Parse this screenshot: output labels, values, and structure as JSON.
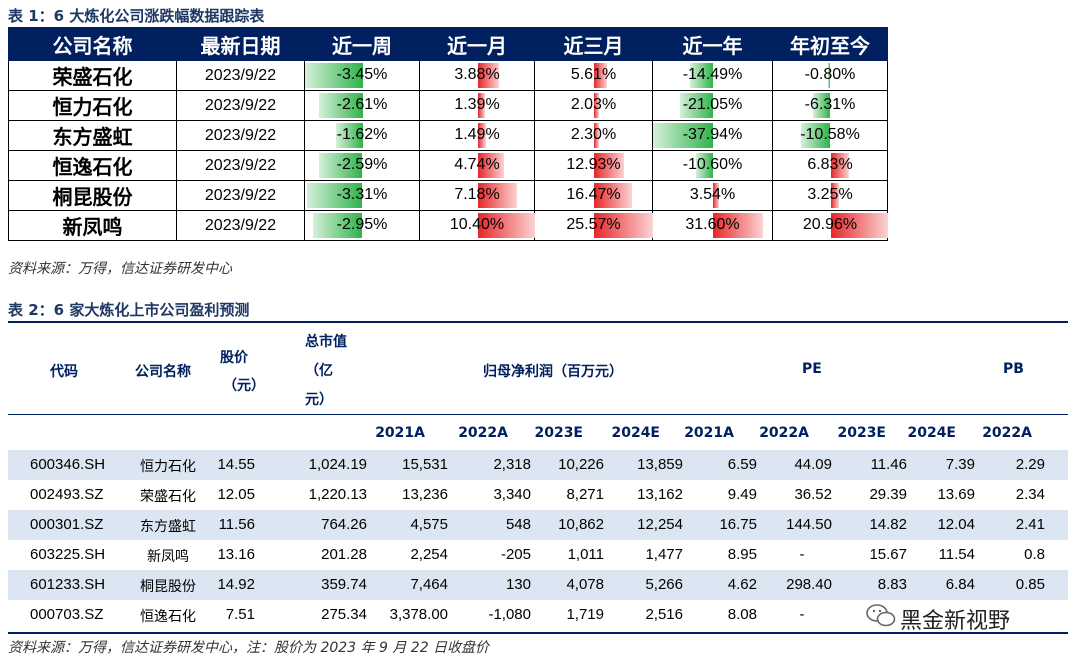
{
  "table1": {
    "caption": "表 1：6 大炼化公司涨跌幅数据跟踪表",
    "headers": [
      "公司名称",
      "最新日期",
      "近一周",
      "近一月",
      "近三月",
      "近一年",
      "年初至今"
    ],
    "rows": [
      {
        "name": "荣盛石化",
        "date": "2023/9/22",
        "values": [
          "-3.45%",
          "3.88%",
          "5.61%",
          "-14.49%",
          "-0.80%"
        ],
        "nums": [
          -3.45,
          3.88,
          5.61,
          -14.49,
          -0.8
        ]
      },
      {
        "name": "恒力石化",
        "date": "2023/9/22",
        "values": [
          "-2.61%",
          "1.39%",
          "2.03%",
          "-21.05%",
          "-6.31%"
        ],
        "nums": [
          -2.61,
          1.39,
          2.03,
          -21.05,
          -6.31
        ]
      },
      {
        "name": "东方盛虹",
        "date": "2023/9/22",
        "values": [
          "-1.62%",
          "1.49%",
          "2.30%",
          "-37.94%",
          "-10.58%"
        ],
        "nums": [
          -1.62,
          1.49,
          2.3,
          -37.94,
          -10.58
        ]
      },
      {
        "name": "恒逸石化",
        "date": "2023/9/22",
        "values": [
          "-2.59%",
          "4.74%",
          "12.93%",
          "-10.60%",
          "6.83%"
        ],
        "nums": [
          -2.59,
          4.74,
          12.93,
          -10.6,
          6.83
        ]
      },
      {
        "name": "桐昆股份",
        "date": "2023/9/22",
        "values": [
          "-3.31%",
          "7.18%",
          "16.47%",
          "3.54%",
          "3.25%"
        ],
        "nums": [
          -3.31,
          7.18,
          16.47,
          3.54,
          3.25
        ]
      },
      {
        "name": "新凤鸣",
        "date": "2023/9/22",
        "values": [
          "-2.95%",
          "10.40%",
          "25.57%",
          "31.60%",
          "20.96%"
        ],
        "nums": [
          -2.95,
          10.4,
          25.57,
          31.6,
          20.96
        ]
      }
    ],
    "source": "资料来源：万得，信达证券研发中心"
  },
  "table2": {
    "caption": "表 2：6 家大炼化上市公司盈利预测",
    "header": {
      "code": "代码",
      "name": "公司名称",
      "price_line1": "股价",
      "price_line2": "（元）",
      "cap_line1": "总市值",
      "cap_line2": "（亿",
      "cap_line3": "元）",
      "profit": "归母净利润（百万元）",
      "pe": "PE",
      "pb": "PB"
    },
    "years": [
      "2021A",
      "2022A",
      "2023E",
      "2024E",
      "2021A",
      "2022A",
      "2023E",
      "2024E",
      "2022A"
    ],
    "rows": [
      [
        "600346.SH",
        "恒力石化",
        "14.55",
        "1,024.19",
        "15,531",
        "2,318",
        "10,226",
        "13,859",
        "6.59",
        "44.09",
        "11.46",
        "7.39",
        "2.29"
      ],
      [
        "002493.SZ",
        "荣盛石化",
        "12.05",
        "1,220.13",
        "13,236",
        "3,340",
        "8,271",
        "13,162",
        "9.49",
        "36.52",
        "29.39",
        "13.69",
        "2.34"
      ],
      [
        "000301.SZ",
        "东方盛虹",
        "11.56",
        "764.26",
        "4,575",
        "548",
        "10,862",
        "12,254",
        "16.75",
        "144.50",
        "14.82",
        "12.04",
        "2.41"
      ],
      [
        "603225.SH",
        "新凤鸣",
        "13.16",
        "201.28",
        "2,254",
        "-205",
        "1,011",
        "1,477",
        "8.95",
        "-",
        "15.67",
        "11.54",
        "0.8"
      ],
      [
        "601233.SH",
        "桐昆股份",
        "14.92",
        "359.74",
        "7,464",
        "130",
        "4,078",
        "5,266",
        "4.62",
        "298.40",
        "8.83",
        "6.84",
        "0.85"
      ],
      [
        "000703.SZ",
        "恒逸石化",
        "7.51",
        "275.34",
        "3,378.00",
        "-1,080",
        "1,719",
        "2,516",
        "8.08",
        "-",
        "",
        "",
        ""
      ]
    ],
    "source": "资料来源：万得，信达证券研发中心，注：股价为 2023 年 9 月 22 日收盘价"
  },
  "watermark": "黑金新视野",
  "colors": {
    "header_bg": "#002060",
    "neg_bar": "#2fb34a",
    "pos_bar": "#e8262a",
    "alt_row": "#dce6f2"
  }
}
